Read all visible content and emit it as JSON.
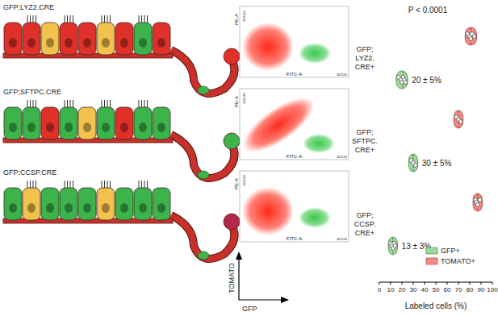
{
  "chart_data": {
    "type": "violin",
    "orientation": "horizontal",
    "title": "P < 0.0001",
    "x_label": "Labeled cells (%)",
    "categories": [
      "GFP;\nLYZ2.\nCRE+",
      "GFP;\nSFTPC.\nCRE+",
      "GFP;\nCCSP.\nCRE+"
    ],
    "series": [
      {
        "name": "GFP+",
        "color": "#9fd89a",
        "values": [
          [
            17,
            19,
            20,
            21,
            22,
            23
          ],
          [
            28,
            30,
            32
          ],
          [
            10,
            11,
            12,
            13,
            14
          ]
        ]
      },
      {
        "name": "TOMATO+",
        "color": "#f28b82",
        "values": [
          [
            78,
            80,
            81,
            82,
            84
          ],
          [
            68,
            70,
            72
          ],
          [
            85,
            86,
            87,
            89
          ]
        ]
      }
    ],
    "annotations": [
      "20 ± 5%",
      "30 ± 5%",
      "13 ± 3%"
    ],
    "xlim": [
      0,
      100
    ],
    "xticks": [
      0,
      10,
      20,
      30,
      40,
      50,
      60,
      70,
      80,
      90,
      100
    ],
    "legend": "lower right"
  },
  "schematic": {
    "rows": [
      {
        "label": "GFP;LYZ2.CRE",
        "cells": [
          "#e0302a",
          "#e0302a",
          "#f2c14e",
          "#e0302a",
          "#e0302a",
          "#f2c14e",
          "#e0302a",
          "#3cb44b",
          "#e0302a"
        ],
        "vessel_cell": "#3cb44b",
        "blood_cell": "#e0302a"
      },
      {
        "label": "GFP;SFTPC.CRE",
        "cells": [
          "#3cb44b",
          "#3cb44b",
          "#e0302a",
          "#3cb44b",
          "#f2c14e",
          "#3cb44b",
          "#e0302a",
          "#3cb44b",
          "#3cb44b"
        ],
        "vessel_cell": "#3cb44b",
        "blood_cell": "#3cb44b"
      },
      {
        "label": "GFP;CCSP.CRE",
        "cells": [
          "#3cb44b",
          "#f2c14e",
          "#3cb44b",
          "#3cb44b",
          "#3cb44b",
          "#f2c14e",
          "#3cb44b",
          "#3cb44b",
          "#3cb44b"
        ],
        "vessel_cell": "#3cb44b",
        "blood_cell": "#b0284a"
      }
    ]
  },
  "flow": {
    "x_label": "FITC-A",
    "y_label": "PE-A",
    "tick_label": "262144",
    "x_axis": "GFP",
    "y_axis": "TOMATO"
  }
}
